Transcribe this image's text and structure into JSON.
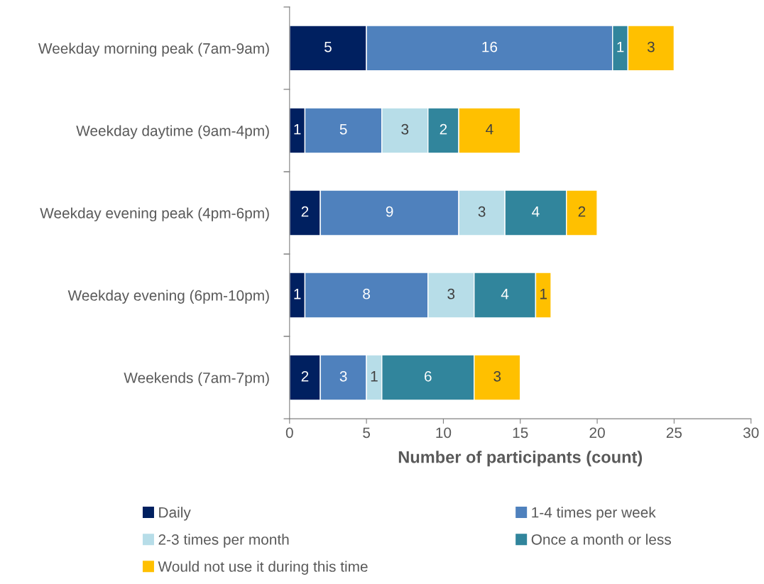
{
  "chart_data": {
    "type": "bar",
    "orientation": "horizontal",
    "stacked": true,
    "data_labels": true,
    "grid": false,
    "legend": "bottom",
    "xlabel": "Number of participants (count)",
    "categories": [
      "Weekday morning peak (7am-9am)",
      "Weekday daytime (9am-4pm)",
      "Weekday evening peak (4pm-6pm)",
      "Weekday evening (6pm-10pm)",
      "Weekends (7am-7pm)"
    ],
    "series": [
      {
        "name": "Daily",
        "color": "#002060",
        "values": [
          5,
          1,
          2,
          1,
          2
        ]
      },
      {
        "name": "1-4 times per week",
        "color": "#4f81bd",
        "values": [
          16,
          5,
          9,
          8,
          3
        ]
      },
      {
        "name": "2-3 times per month",
        "color": "#b7dde8",
        "values": [
          null,
          3,
          3,
          3,
          1
        ]
      },
      {
        "name": "Once a month or less",
        "color": "#31859c",
        "values": [
          1,
          2,
          4,
          4,
          6
        ]
      },
      {
        "name": "Would not use it during this time",
        "color": "#ffc000",
        "values": [
          3,
          4,
          2,
          1,
          3
        ]
      }
    ],
    "xlim": [
      0,
      30
    ],
    "xticks": [
      0,
      5,
      10,
      15,
      20,
      25,
      30
    ]
  }
}
